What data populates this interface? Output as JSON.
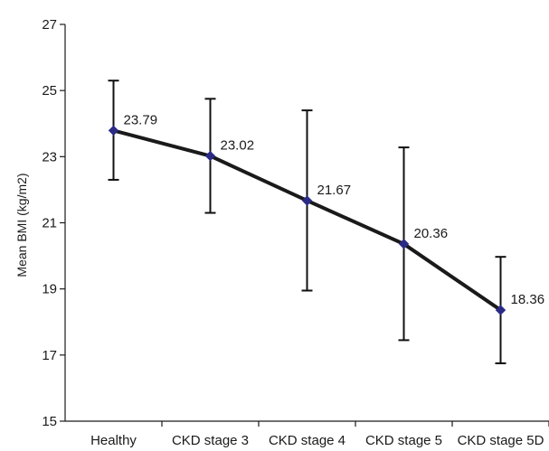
{
  "chart_data": {
    "type": "line",
    "categories": [
      "Healthy",
      "CKD stage 3",
      "CKD stage 4",
      "CKD stage 5",
      "CKD stage 5D"
    ],
    "values": [
      23.79,
      23.02,
      21.67,
      20.36,
      18.36
    ],
    "error_low": [
      22.3,
      21.3,
      18.95,
      17.45,
      16.75
    ],
    "error_high": [
      25.3,
      24.75,
      24.4,
      23.28,
      19.97
    ],
    "data_labels": [
      "23.79",
      "23.02",
      "21.67",
      "20.36",
      "18.36"
    ],
    "ylabel": "Mean BMI (kg/m2)",
    "xlabel": "",
    "ylim": [
      15,
      27
    ],
    "yticks": [
      15,
      17,
      19,
      21,
      23,
      25,
      27
    ],
    "ytick_labels": [
      "15",
      "17",
      "19",
      "21",
      "23",
      "25",
      "27"
    ],
    "grid": false,
    "legend": "none",
    "line_color": "#1a1a1a",
    "marker_color": "#2b2b86",
    "marker": "diamond"
  }
}
